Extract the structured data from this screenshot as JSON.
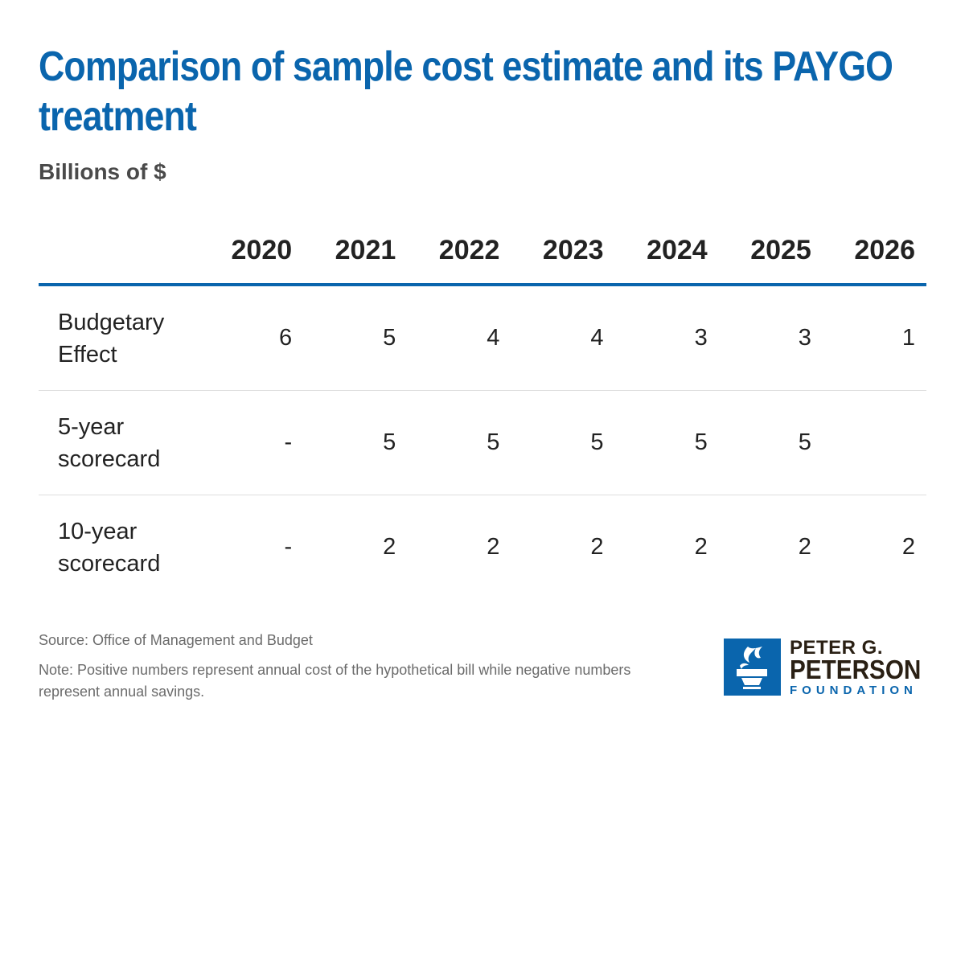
{
  "chart_data": {
    "type": "table",
    "title": "Comparison of sample cost estimate and its PAYGO treatment",
    "subtitle": "Billions of $",
    "columns": [
      "2020",
      "2021",
      "2022",
      "2023",
      "2024",
      "2025",
      "2026"
    ],
    "rows": [
      {
        "label": "Budgetary Effect",
        "values": [
          "6",
          "5",
          "4",
          "4",
          "3",
          "3",
          "1"
        ]
      },
      {
        "label": "5-year scorecard",
        "values": [
          "-",
          "5",
          "5",
          "5",
          "5",
          "5",
          ""
        ]
      },
      {
        "label": "10-year scorecard",
        "values": [
          "-",
          "2",
          "2",
          "2",
          "2",
          "2",
          "2"
        ]
      }
    ]
  },
  "footer": {
    "source": "Source: Office of Management and Budget",
    "note": "Note: Positive numbers represent annual cost of the hypothetical bill while negative numbers represent annual savings."
  },
  "logo": {
    "line1": "PETER G.",
    "line2": "PETERSON",
    "line3": "FOUNDATION",
    "color": "#0a65ad",
    "icon": "torch-icon"
  },
  "colors": {
    "accent": "#0a65ad",
    "text": "#222222",
    "muted": "#6b6b6b"
  }
}
